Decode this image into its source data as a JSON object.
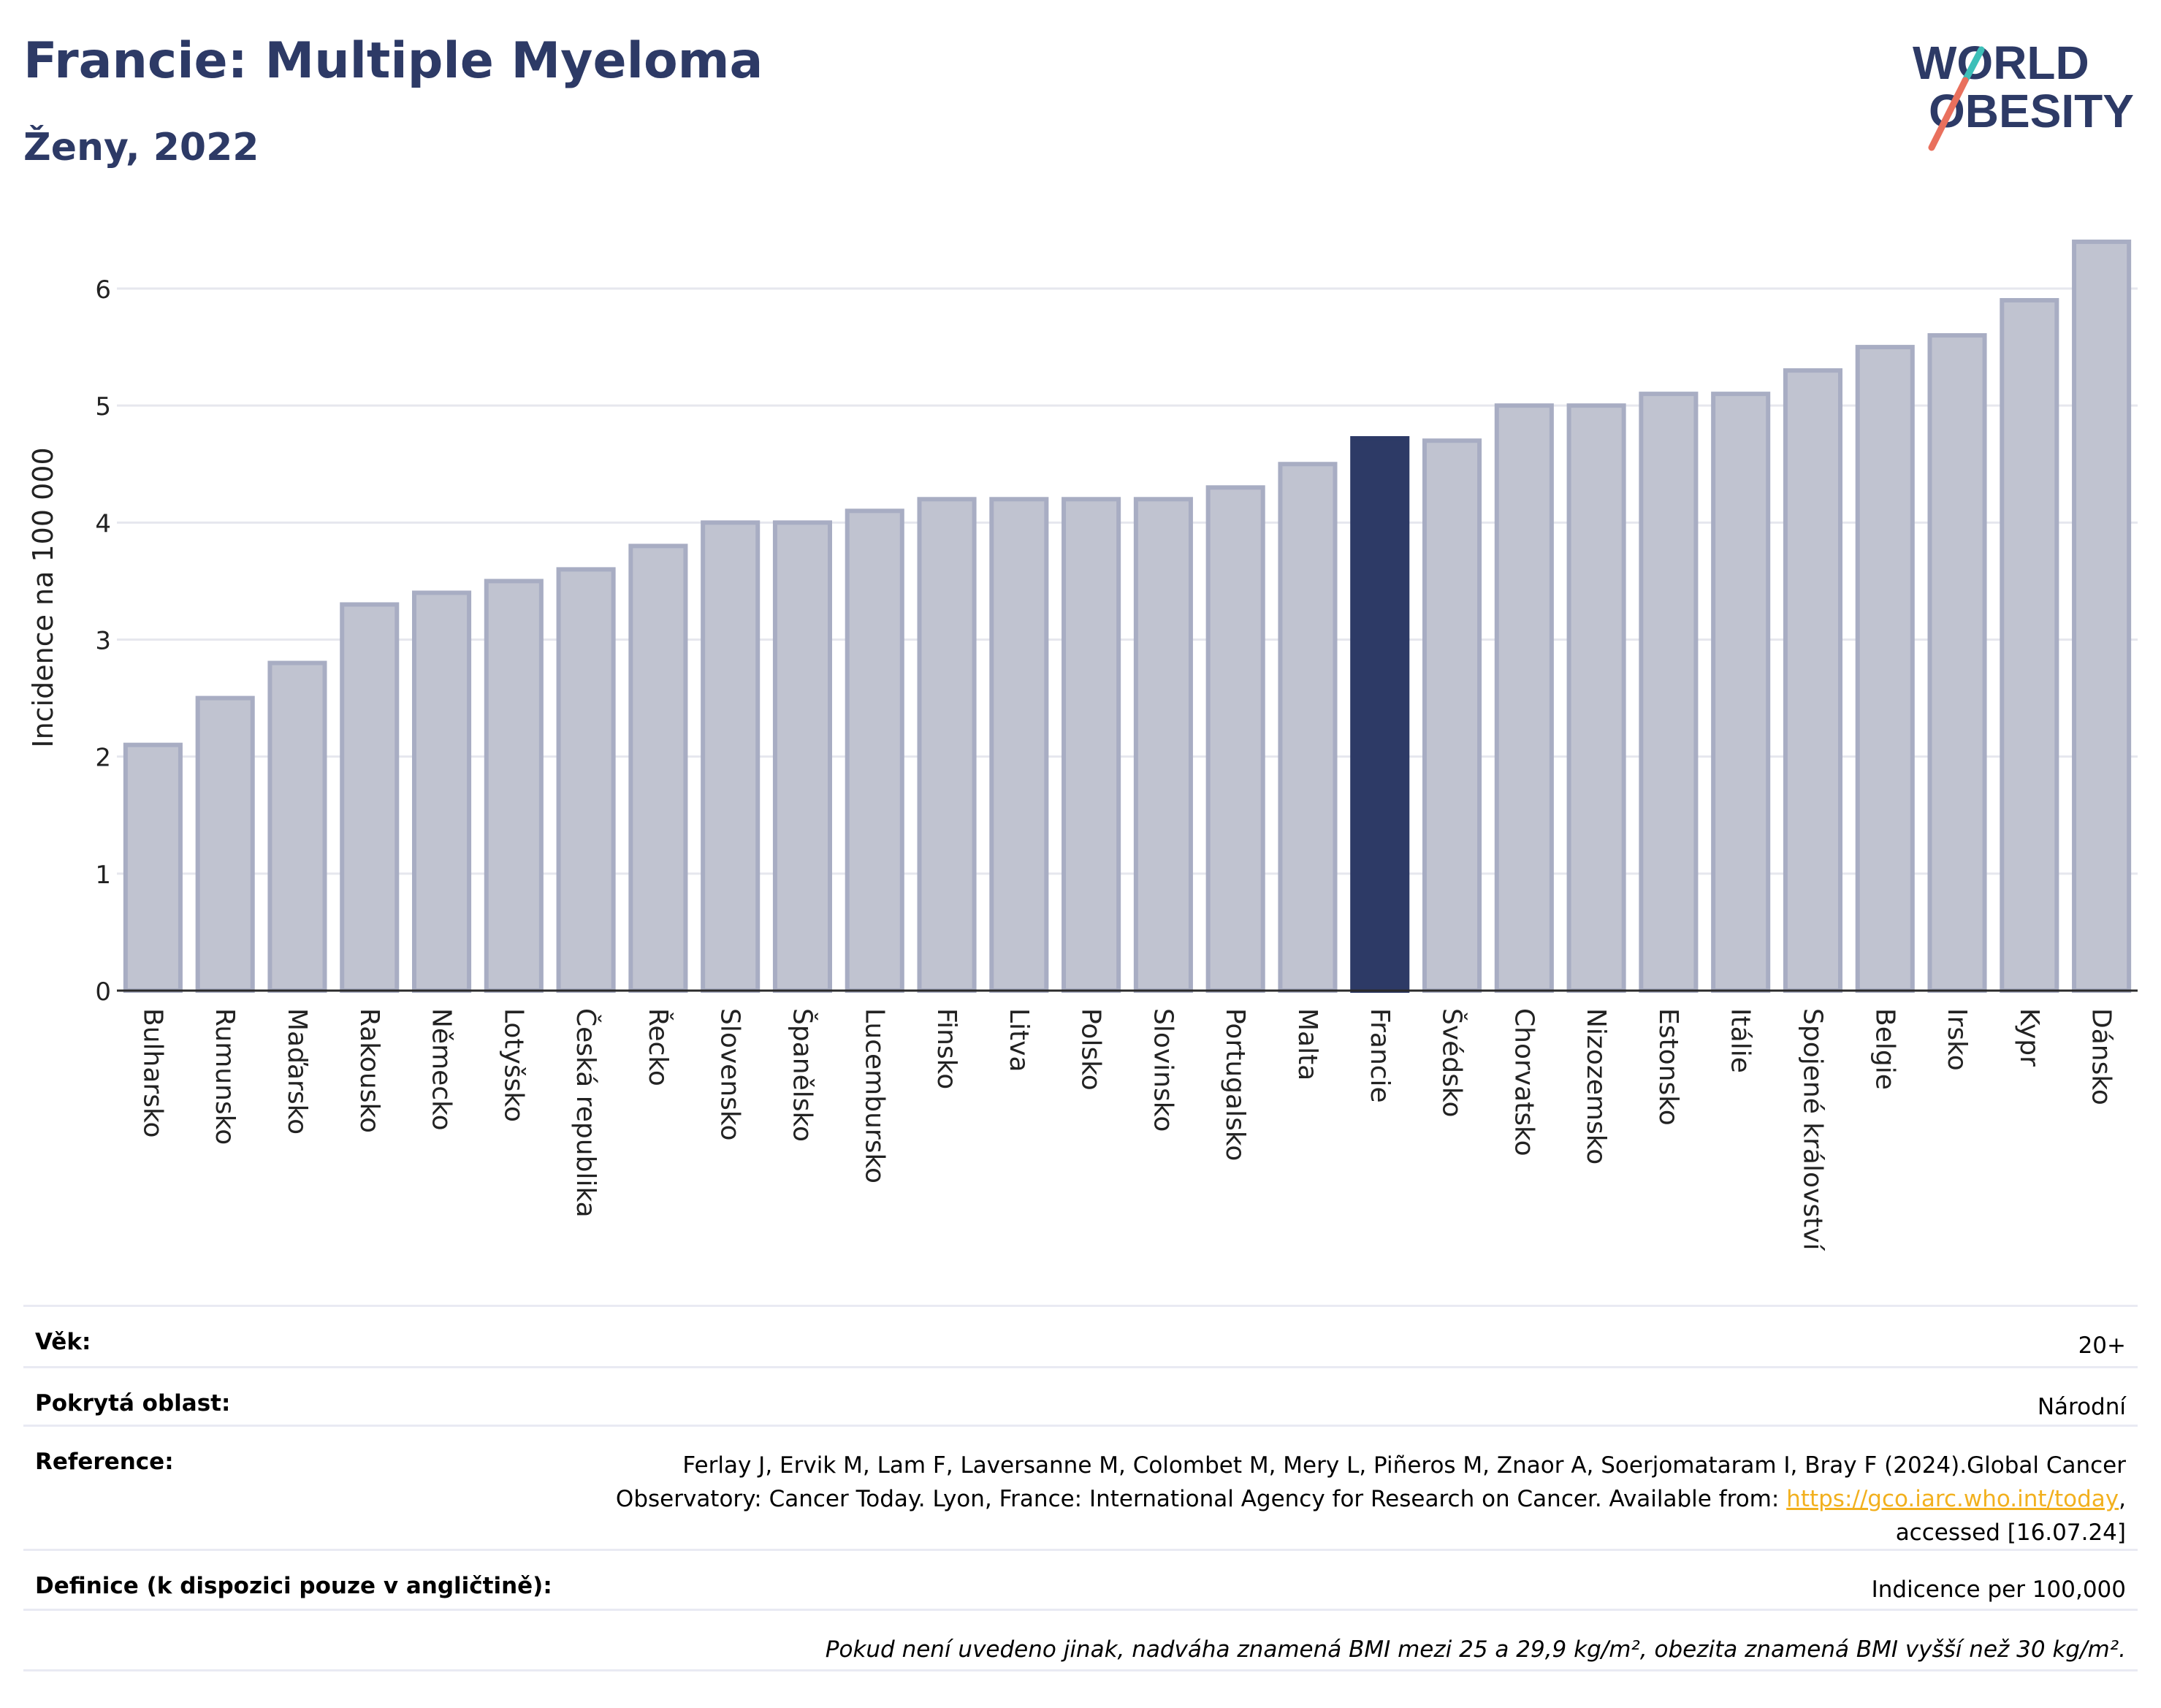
{
  "header": {
    "title": "Francie: Multiple Myeloma",
    "subtitle": "Ženy, 2022"
  },
  "logo": {
    "line1": "WORLD",
    "line2": "OBESITY"
  },
  "chart_data": {
    "type": "bar",
    "ylabel": "Incidence na 100 000",
    "ylim": [
      0,
      6.5
    ],
    "yticks": [
      0,
      1,
      2,
      3,
      4,
      5,
      6
    ],
    "grid": true,
    "highlight": "Francie",
    "colors": {
      "bar": "#c0c3d0",
      "bar_border": "#a8adc3",
      "highlight": "#2d3a66"
    },
    "categories": [
      "Bulharsko",
      "Rumunsko",
      "Maďarsko",
      "Rakousko",
      "Německo",
      "Lotyšsko",
      "Česká republika",
      "Řecko",
      "Slovensko",
      "Španělsko",
      "Lucembursko",
      "Finsko",
      "Litva",
      "Polsko",
      "Slovinsko",
      "Portugalsko",
      "Malta",
      "Francie",
      "Švédsko",
      "Chorvatsko",
      "Nizozemsko",
      "Estonsko",
      "Itálie",
      "Spojené království",
      "Belgie",
      "Irsko",
      "Kypr",
      "Dánsko"
    ],
    "values": [
      2.1,
      2.5,
      2.8,
      3.3,
      3.4,
      3.5,
      3.6,
      3.8,
      4.0,
      4.0,
      4.1,
      4.2,
      4.2,
      4.2,
      4.2,
      4.3,
      4.5,
      4.72,
      4.7,
      5.0,
      5.0,
      5.1,
      5.1,
      5.3,
      5.5,
      5.6,
      5.9,
      6.4
    ]
  },
  "info": {
    "age_label": "Věk:",
    "age_value": "20+",
    "area_label": "Pokrytá oblast:",
    "area_value": "Národní",
    "ref_label": "Reference:",
    "ref_text1": "Ferlay J, Ervik M, Lam F, Laversanne M, Colombet M, Mery L, Piñeros M, Znaor A, Soerjomataram I, Bray F (2024).Global Cancer",
    "ref_text2": "Observatory: Cancer Today. Lyon, France: International Agency for Research on Cancer. Available from: ",
    "ref_link": "https://gco.iarc.who.int/today",
    "ref_text3": ",",
    "ref_text4": "accessed [16.07.24]",
    "def_label": "Definice (k dispozici pouze v angličtině):",
    "def_value": "Indicence per 100,000",
    "footnote": "Pokud není uvedeno jinak, nadváha znamená BMI mezi 25 a 29,9 kg/m², obezita znamená BMI vyšší než 30 kg/m²."
  }
}
